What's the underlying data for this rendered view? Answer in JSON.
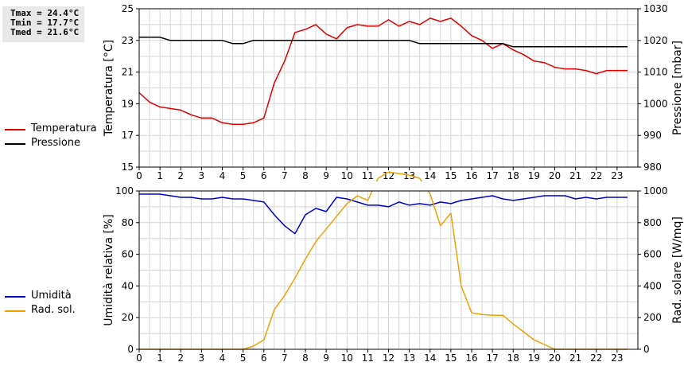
{
  "stats": {
    "tmax": "Tmax = 24.4°C",
    "tmin": "Tmin = 17.7°C",
    "tmed": "Tmed = 21.6°C"
  },
  "legend_top": [
    {
      "label": "Temperatura",
      "color": "#e00000"
    },
    {
      "label": "Pressione",
      "color": "#000000"
    }
  ],
  "legend_bottom": [
    {
      "label": "Umidità",
      "color": "#0000cc"
    },
    {
      "label": "Rad. sol.",
      "color": "#f0a000"
    }
  ],
  "chart_data": [
    {
      "type": "line",
      "xlim": [
        0,
        24
      ],
      "xticks": [
        0,
        1,
        2,
        3,
        4,
        5,
        6,
        7,
        8,
        9,
        10,
        11,
        12,
        13,
        14,
        15,
        16,
        17,
        18,
        19,
        20,
        21,
        22,
        23
      ],
      "grid": true,
      "ylabel": "Temperatura [°C]",
      "ylim": [
        15,
        25
      ],
      "yticks": [
        15,
        17,
        19,
        21,
        23,
        25
      ],
      "y2label": "Pressione [mbar]",
      "y2lim": [
        980,
        1030
      ],
      "y2ticks": [
        980,
        990,
        1000,
        1010,
        1020,
        1030
      ],
      "series": [
        {
          "name": "Temperatura",
          "axis": "left",
          "color": "#e00000",
          "x": [
            0,
            0.5,
            1,
            1.5,
            2,
            2.5,
            3,
            3.5,
            4,
            4.5,
            5,
            5.5,
            6,
            6.5,
            7,
            7.5,
            8,
            8.5,
            9,
            9.5,
            10,
            10.5,
            11,
            11.5,
            12,
            12.5,
            13,
            13.5,
            14,
            14.5,
            15,
            15.5,
            16,
            16.5,
            17,
            17.5,
            18,
            18.5,
            19,
            19.5,
            20,
            20.5,
            21,
            21.5,
            22,
            22.5,
            23,
            23.5
          ],
          "y": [
            19.7,
            19.1,
            18.8,
            18.7,
            18.6,
            18.3,
            18.1,
            18.1,
            17.8,
            17.7,
            17.7,
            17.8,
            18.1,
            20.3,
            21.7,
            23.5,
            23.7,
            24.0,
            23.4,
            23.1,
            23.8,
            24.0,
            23.9,
            23.9,
            24.3,
            23.9,
            24.2,
            24.0,
            24.4,
            24.2,
            24.4,
            23.9,
            23.3,
            23.0,
            22.5,
            22.8,
            22.4,
            22.1,
            21.7,
            21.6,
            21.3,
            21.2,
            21.2,
            21.1,
            20.9,
            21.1,
            21.1,
            21.1
          ]
        },
        {
          "name": "Pressione",
          "axis": "right",
          "color": "#000000",
          "x": [
            0,
            1,
            1.5,
            4,
            4.5,
            5,
            5.5,
            13,
            13.5,
            17.5,
            18,
            23.5
          ],
          "y": [
            1021,
            1021,
            1020,
            1020,
            1019,
            1019,
            1020,
            1020,
            1019,
            1019,
            1018,
            1018
          ]
        }
      ]
    },
    {
      "type": "line",
      "xlim": [
        0,
        24
      ],
      "xticks": [
        0,
        1,
        2,
        3,
        4,
        5,
        6,
        7,
        8,
        9,
        10,
        11,
        12,
        13,
        14,
        15,
        16,
        17,
        18,
        19,
        20,
        21,
        22,
        23
      ],
      "grid": true,
      "ylabel": "Umidità relativa [%]",
      "ylim": [
        0,
        100
      ],
      "yticks": [
        0,
        20,
        40,
        60,
        80,
        100
      ],
      "y2label": "Rad. solare [W/mq]",
      "y2lim": [
        0,
        1000
      ],
      "y2ticks": [
        0,
        200,
        400,
        600,
        800,
        1000
      ],
      "series": [
        {
          "name": "Umidità",
          "axis": "left",
          "color": "#0000cc",
          "x": [
            0,
            0.5,
            1,
            1.5,
            2,
            2.5,
            3,
            3.5,
            4,
            4.5,
            5,
            5.5,
            6,
            6.5,
            7,
            7.5,
            8,
            8.5,
            9,
            9.5,
            10,
            10.5,
            11,
            11.5,
            12,
            12.5,
            13,
            13.5,
            14,
            14.5,
            15,
            15.5,
            16,
            16.5,
            17,
            17.5,
            18,
            18.5,
            19,
            19.5,
            20,
            20.5,
            21,
            21.5,
            22,
            22.5,
            23,
            23.5
          ],
          "y": [
            98,
            98,
            98,
            97,
            96,
            96,
            95,
            95,
            96,
            95,
            95,
            94,
            93,
            85,
            78,
            73,
            85,
            89,
            87,
            96,
            95,
            93,
            91,
            91,
            90,
            93,
            91,
            92,
            91,
            93,
            92,
            94,
            95,
            96,
            97,
            95,
            94,
            95,
            96,
            97,
            97,
            97,
            95,
            96,
            95,
            96,
            96,
            96
          ]
        },
        {
          "name": "Rad. sol.",
          "axis": "right",
          "color": "#f0a000",
          "x": [
            0,
            0.5,
            1,
            1.5,
            2,
            2.5,
            3,
            3.5,
            4,
            4.5,
            5,
            5.5,
            6,
            6.5,
            7,
            7.5,
            8,
            8.5,
            9,
            9.5,
            10,
            10.5,
            11,
            11.5,
            12,
            12.5,
            13,
            13.5,
            14,
            14.5,
            15,
            15.5,
            16,
            16.5,
            17,
            17.5,
            18,
            18.5,
            19,
            19.5,
            20,
            20.5,
            21,
            21.5,
            22,
            22.5,
            23,
            23.5
          ],
          "y": [
            0,
            0,
            0,
            0,
            0,
            0,
            0,
            0,
            0,
            0,
            0,
            20,
            60,
            250,
            340,
            450,
            570,
            680,
            760,
            840,
            920,
            970,
            940,
            1080,
            1120,
            1110,
            1100,
            1080,
            980,
            780,
            860,
            400,
            230,
            220,
            215,
            215,
            160,
            110,
            60,
            30,
            0,
            0,
            0,
            0,
            0,
            0,
            0,
            0
          ]
        }
      ]
    }
  ]
}
